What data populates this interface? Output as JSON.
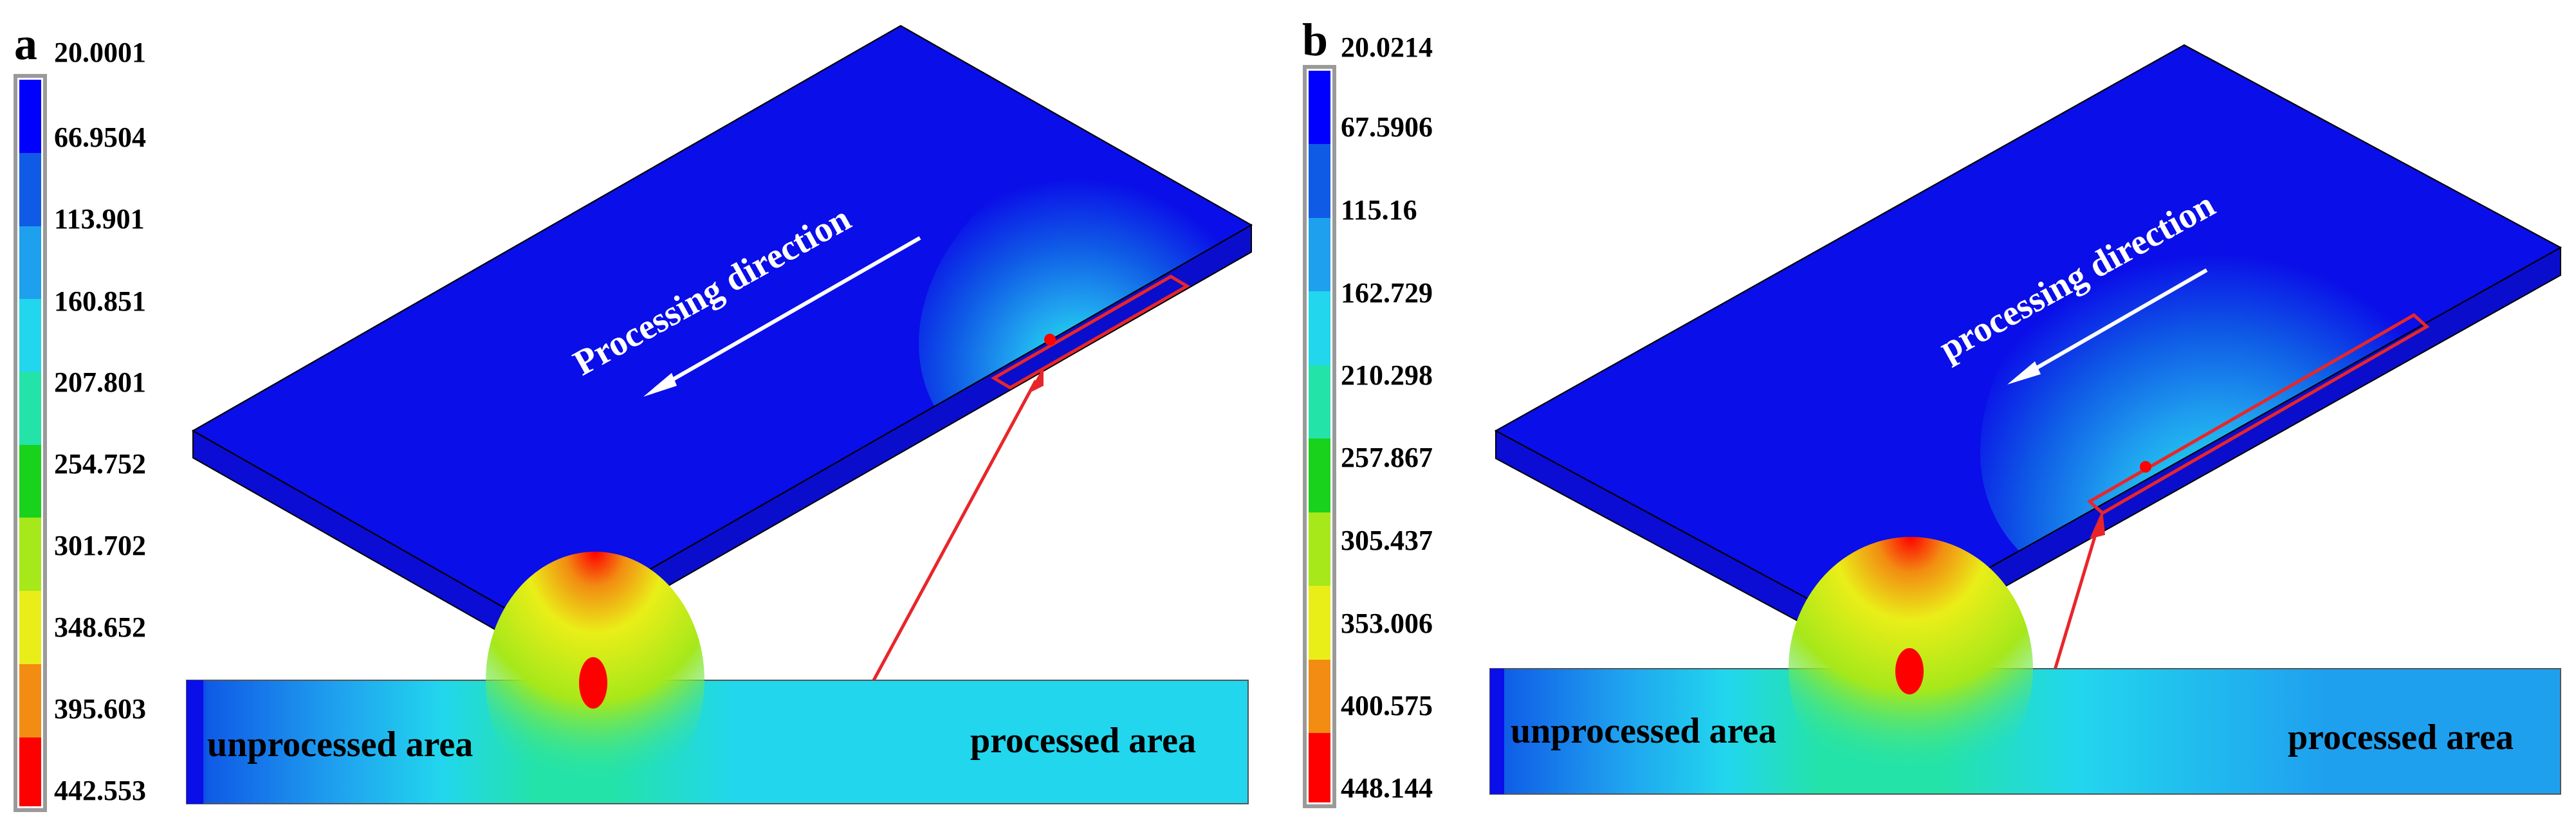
{
  "colors": {
    "plate_top": "#0a0ee8",
    "plate_side": "#0b0dd4",
    "selection_box": "#e8262a",
    "callout_arrow": "#e8262a",
    "direction_arrow": "#ffffff",
    "legend_scale": [
      "#0000ff",
      "#0f5be6",
      "#1fa0ef",
      "#22d6ee",
      "#24e3a8",
      "#19d21c",
      "#a6e81a",
      "#eaee18",
      "#f28c12",
      "#ff0000"
    ]
  },
  "panels": [
    {
      "letter": "a",
      "legend_labels": [
        "20.0001",
        "66.9504",
        "113.901",
        "160.851",
        "207.801",
        "254.752",
        "301.702",
        "348.652",
        "395.603",
        "442.553"
      ],
      "direction_text": "Processing direction",
      "cross_section": {
        "left_label": "unprocessed area",
        "right_label": "processed area"
      }
    },
    {
      "letter": "b",
      "legend_labels": [
        "20.0214",
        "67.5906",
        "115.16",
        "162.729",
        "210.298",
        "257.867",
        "305.437",
        "353.006",
        "400.575",
        "448.144"
      ],
      "direction_text": "processing direction",
      "cross_section": {
        "left_label": "unprocessed area",
        "right_label": "processed area"
      }
    }
  ]
}
